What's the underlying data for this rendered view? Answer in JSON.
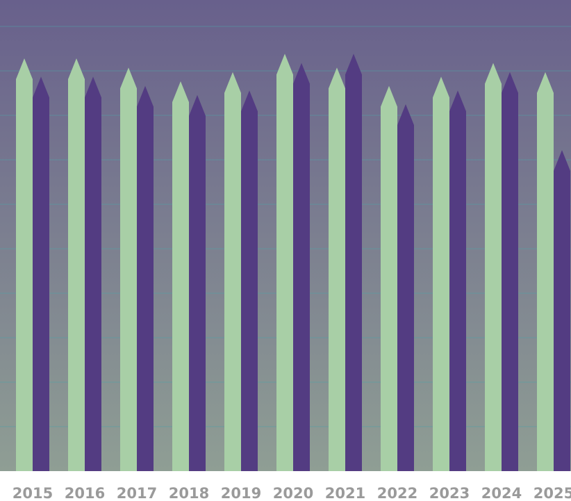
{
  "chart_data": {
    "type": "bar",
    "title": "",
    "xlabel": "",
    "ylabel": "",
    "categories": [
      "2015",
      "2016",
      "2017",
      "2018",
      "2019",
      "2020",
      "2021",
      "2022",
      "2023",
      "2024",
      "2025"
    ],
    "series": [
      {
        "values": [
          90,
          90,
          88,
          85,
          87,
          91,
          88,
          84,
          86,
          89,
          87
        ]
      },
      {
        "values": [
          86,
          86,
          84,
          82,
          83,
          89,
          91,
          80,
          83,
          87,
          70
        ]
      }
    ],
    "ylim": [
      0,
      100
    ],
    "grid": true,
    "legend": "none",
    "colors": {
      "series": [
        "#a8cfa6",
        "#533c82"
      ],
      "background_top": "#68608c",
      "background_bottom": "#8f9e94",
      "grid": "#4fa3a8",
      "tick_text": "#9a9a9a"
    }
  }
}
